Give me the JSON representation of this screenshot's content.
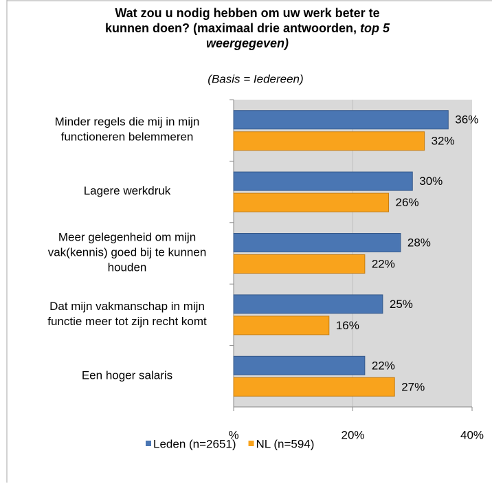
{
  "chart_data": {
    "type": "hbar",
    "title": {
      "text": "Wat zou u nodig hebben om uw werk beter te\nkunnen doen? (maximaal drie antwoorden,",
      "emphasis": "top 5\nweergegeven)"
    },
    "subtitle": "(Basis = Iedereen)",
    "categories": [
      "Minder regels die mij in mijn\nfunctioneren belemmeren",
      "Lagere werkdruk",
      "Meer gelegenheid om mijn\nvak(kennis) goed bij te kunnen\nhouden",
      "Dat mijn vakmanschap in mijn\nfunctie meer tot zijn recht komt",
      "Een hoger salaris"
    ],
    "series": [
      {
        "name": "Leden (n=2651)",
        "color": "#4a76b3",
        "values": [
          36,
          30,
          28,
          25,
          22
        ],
        "value_labels": [
          "36%",
          "30%",
          "28%",
          "25%",
          "22%"
        ]
      },
      {
        "name": "NL (n=594)",
        "color": "#f9a31c",
        "values": [
          32,
          26,
          22,
          16,
          27
        ],
        "value_labels": [
          "32%",
          "26%",
          "22%",
          "16%",
          "27%"
        ]
      }
    ],
    "xlim": [
      0,
      40
    ],
    "xticks": [
      {
        "value": 0,
        "label": "%"
      },
      {
        "value": 20,
        "label": "20%"
      },
      {
        "value": 40,
        "label": "40%"
      }
    ],
    "grid": true,
    "legend": "bottom"
  }
}
